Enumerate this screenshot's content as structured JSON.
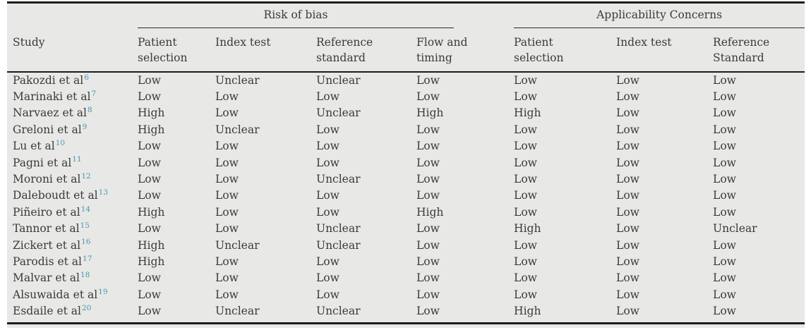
{
  "colors": {
    "panel_bg": "#e8e8e6",
    "rule": "#1c1c1c",
    "text": "#3a3a3a",
    "citation": "#4d95b2"
  },
  "table": {
    "group_headers": [
      {
        "label": "Risk of bias",
        "colspan": 4
      },
      {
        "label": "Applicability Concerns",
        "colspan": 3
      }
    ],
    "columns": [
      "Study",
      "Patient selection",
      "Index test",
      "Reference standard",
      "Flow and timing",
      "Patient selection",
      "Index test",
      "Reference Standard"
    ],
    "rows": [
      {
        "study": "Pakozdi et al",
        "ref": "6",
        "values": [
          "Low",
          "Unclear",
          "Unclear",
          "Low",
          "Low",
          "Low",
          "Low"
        ]
      },
      {
        "study": "Marinaki et al",
        "ref": "7",
        "values": [
          "Low",
          "Low",
          "Low",
          "Low",
          "Low",
          "Low",
          "Low"
        ]
      },
      {
        "study": "Narvaez et al",
        "ref": "8",
        "values": [
          "High",
          "Low",
          "Unclear",
          "High",
          "High",
          "Low",
          "Low"
        ]
      },
      {
        "study": "Greloni et al",
        "ref": "9",
        "values": [
          "High",
          "Unclear",
          "Low",
          "Low",
          "Low",
          "Low",
          "Low"
        ]
      },
      {
        "study": "Lu et al",
        "ref": "10",
        "values": [
          "Low",
          "Low",
          "Low",
          "Low",
          "Low",
          "Low",
          "Low"
        ]
      },
      {
        "study": "Pagni et al",
        "ref": "11",
        "values": [
          "Low",
          "Low",
          "Low",
          "Low",
          "Low",
          "Low",
          "Low"
        ]
      },
      {
        "study": "Moroni et al",
        "ref": "12",
        "values": [
          "Low",
          "Low",
          "Unclear",
          "Low",
          "Low",
          "Low",
          "Low"
        ]
      },
      {
        "study": "Daleboudt et al",
        "ref": "13",
        "values": [
          "Low",
          "Low",
          "Low",
          "Low",
          "Low",
          "Low",
          "Low"
        ]
      },
      {
        "study": "Piñeiro et al",
        "ref": "14",
        "values": [
          "High",
          "Low",
          "Low",
          "High",
          "Low",
          "Low",
          "Low"
        ]
      },
      {
        "study": "Tannor et al",
        "ref": "15",
        "values": [
          "Low",
          "Low",
          "Unclear",
          "Low",
          "High",
          "Low",
          "Unclear"
        ]
      },
      {
        "study": "Zickert et al",
        "ref": "16",
        "values": [
          "High",
          "Unclear",
          "Unclear",
          "Low",
          "Low",
          "Low",
          "Low"
        ]
      },
      {
        "study": "Parodis et al",
        "ref": "17",
        "values": [
          "High",
          "Low",
          "Low",
          "Low",
          "Low",
          "Low",
          "Low"
        ]
      },
      {
        "study": "Malvar et al",
        "ref": "18",
        "values": [
          "Low",
          "Low",
          "Low",
          "Low",
          "Low",
          "Low",
          "Low"
        ]
      },
      {
        "study": "Alsuwaida et al",
        "ref": "19",
        "values": [
          "Low",
          "Low",
          "Low",
          "Low",
          "Low",
          "Low",
          "Low"
        ]
      },
      {
        "study": "Esdaile et al",
        "ref": "20",
        "values": [
          "Low",
          "Unclear",
          "Unclear",
          "Low",
          "High",
          "Low",
          "Low"
        ]
      }
    ]
  }
}
